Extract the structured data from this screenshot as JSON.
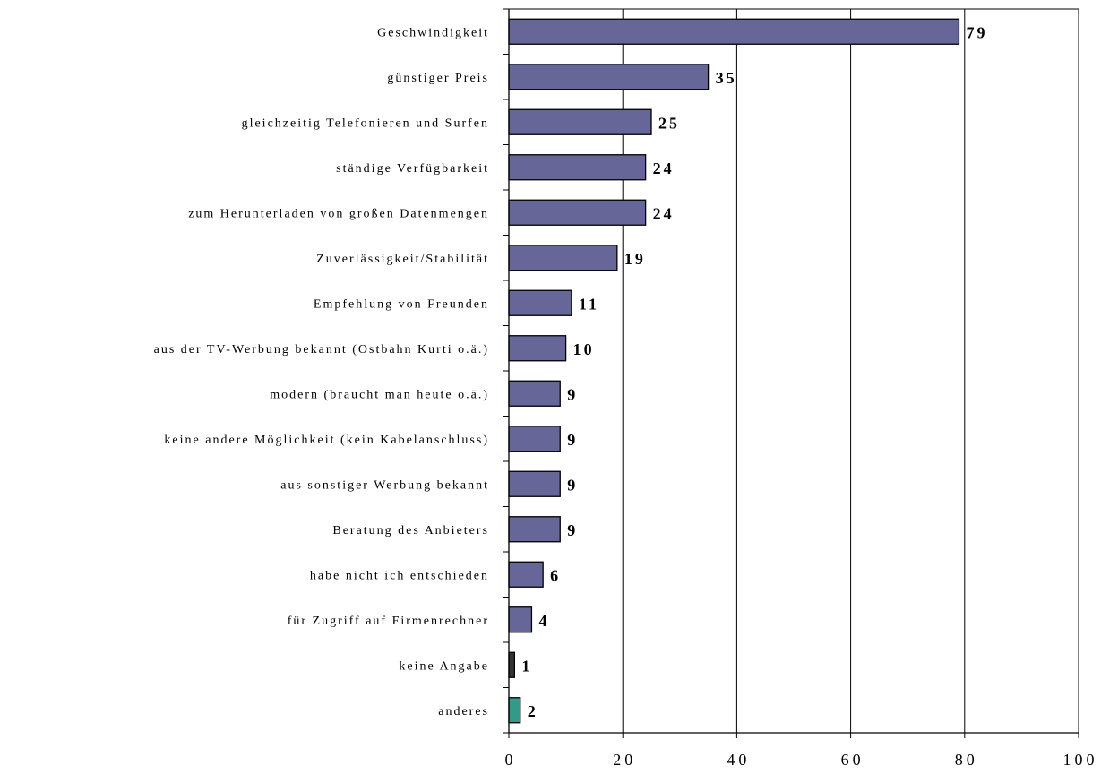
{
  "chart_data": {
    "type": "bar",
    "orientation": "horizontal",
    "categories": [
      "Geschwindigkeit",
      "günstiger Preis",
      "gleichzeitig Telefonieren und Surfen",
      "ständige Verfügbarkeit",
      "zum Herunterladen von großen Datenmengen",
      "Zuverlässigkeit/Stabilität",
      "Empfehlung von Freunden",
      "aus der TV-Werbung bekannt (Ostbahn Kurti o.ä.)",
      "modern (braucht man heute o.ä.)",
      "keine andere Möglichkeit (kein Kabelanschluss)",
      "aus sonstiger Werbung bekannt",
      "Beratung des Anbieters",
      "habe nicht ich entschieden",
      "für Zugriff auf Firmenrechner",
      "keine Angabe",
      "anderes"
    ],
    "values": [
      79,
      35,
      25,
      24,
      24,
      19,
      11,
      10,
      9,
      9,
      9,
      9,
      6,
      4,
      1,
      2
    ],
    "value_labels": [
      "79",
      "35",
      "25",
      "24",
      "24",
      "19",
      "11",
      "10",
      "9",
      "9",
      "9",
      "9",
      "6",
      "4",
      "1",
      "2"
    ],
    "bar_colors": [
      "#666699",
      "#666699",
      "#666699",
      "#666699",
      "#666699",
      "#666699",
      "#666699",
      "#666699",
      "#666699",
      "#666699",
      "#666699",
      "#666699",
      "#666699",
      "#666699",
      "#333333",
      "#339988"
    ],
    "xlim": [
      0,
      100
    ],
    "xticks": [
      0,
      20,
      40,
      60,
      80,
      100
    ],
    "xtick_labels": [
      "0",
      "20",
      "40",
      "60",
      "80",
      "100"
    ],
    "grid": "vertical",
    "legend": "none"
  }
}
